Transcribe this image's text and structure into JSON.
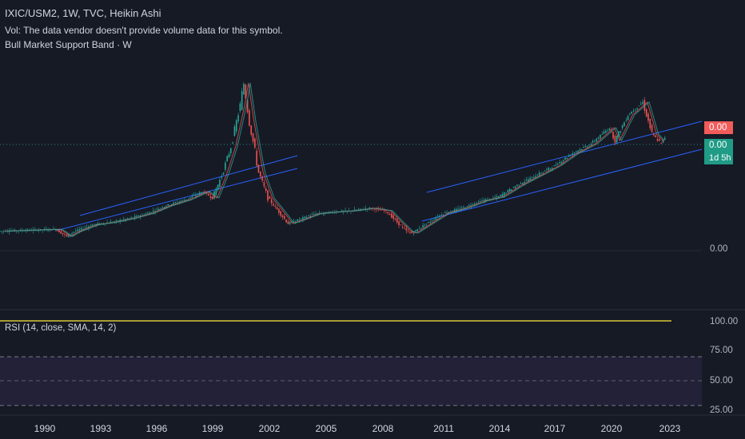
{
  "legend": {
    "title": "IXIC/USM2, 1W, TVC, Heikin Ashi",
    "volume_note": "Vol: The data vendor doesn't provide volume data for this symbol.",
    "indicator": "Bull Market Support Band · W"
  },
  "price_scale": {
    "tag_red": "0.00",
    "tag_green": "0.00",
    "countdown": "1d 5h",
    "zero_label": "0.00",
    "colors": {
      "red_tag": "#f15b5a",
      "green_tag": "#1f9b86"
    }
  },
  "rsi": {
    "label": "RSI (14, close, SMA, 14, 2)",
    "ticks": [
      "100.00",
      "75.00",
      "50.00",
      "25.00"
    ],
    "line_color": "#ffeb3b",
    "band_color": "#7e57c2"
  },
  "time_axis": {
    "years": [
      "1990",
      "1993",
      "1996",
      "1999",
      "2002",
      "2005",
      "2008",
      "2011",
      "2014",
      "2017",
      "2020",
      "2023"
    ]
  },
  "chart_data": {
    "type": "line",
    "series": [
      {
        "values_note_free": true,
        "x": [
          1987.0,
          1988.0,
          1989.0,
          1990.0,
          1990.6,
          1991.0,
          1992.0,
          1993.0,
          1994.0,
          1995.0,
          1996.0,
          1997.0,
          1998.0,
          1998.5,
          1999.0,
          1999.5,
          2000.0,
          2000.2,
          2000.5,
          2001.0,
          2001.5,
          2002.0,
          2002.6,
          2003.0,
          2004.0,
          2005.0,
          2006.0,
          2007.0,
          2007.9,
          2008.5,
          2009.0,
          2009.3,
          2010.0,
          2011.0,
          2012.0,
          2013.0,
          2014.0,
          2015.0,
          2016.0,
          2017.0,
          2018.0,
          2019.0,
          2020.0,
          2020.3,
          2021.0,
          2021.8,
          2022.3,
          2022.8,
          2023.0
        ],
        "y": [
          0.58,
          0.59,
          0.6,
          0.61,
          0.5,
          0.57,
          0.68,
          0.72,
          0.78,
          0.86,
          0.98,
          1.07,
          1.2,
          1.1,
          1.45,
          1.9,
          2.55,
          2.9,
          2.3,
          1.5,
          1.1,
          0.92,
          0.7,
          0.74,
          0.85,
          0.88,
          0.9,
          0.94,
          0.9,
          0.72,
          0.58,
          0.55,
          0.68,
          0.86,
          0.94,
          1.05,
          1.12,
          1.3,
          1.45,
          1.6,
          1.8,
          1.95,
          2.2,
          2.0,
          2.4,
          2.6,
          2.1,
          1.95,
          2.05
        ]
      }
    ],
    "xlim": [
      1987,
      2025
    ],
    "grid": true
  }
}
